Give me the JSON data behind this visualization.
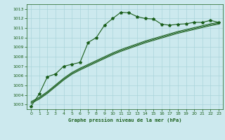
{
  "bg_color": "#cce9ee",
  "grid_color": "#aad4da",
  "line_color": "#1a5e1a",
  "title": "Graphe pression niveau de la mer (hPa)",
  "ylim": [
    1002.5,
    1013.5
  ],
  "xlim": [
    -0.5,
    23.5
  ],
  "yticks": [
    1003,
    1004,
    1005,
    1006,
    1007,
    1008,
    1009,
    1010,
    1011,
    1012,
    1013
  ],
  "xticks": [
    0,
    1,
    2,
    3,
    4,
    5,
    6,
    7,
    8,
    9,
    10,
    11,
    12,
    13,
    14,
    15,
    16,
    17,
    18,
    19,
    20,
    21,
    22,
    23
  ],
  "main_x": [
    0,
    1,
    2,
    3,
    4,
    5,
    6,
    7,
    8,
    9,
    10,
    11,
    12,
    13,
    14,
    15,
    16,
    17,
    18,
    19,
    20,
    21,
    22,
    23
  ],
  "main_y": [
    1002.8,
    1004.1,
    1005.9,
    1006.2,
    1007.0,
    1007.2,
    1007.4,
    1009.5,
    1010.0,
    1011.3,
    1012.0,
    1012.65,
    1012.6,
    1012.2,
    1012.0,
    1011.95,
    1011.4,
    1011.3,
    1011.4,
    1011.45,
    1011.6,
    1011.6,
    1011.8,
    1011.6
  ],
  "smooth1_y": [
    1003.1,
    1003.55,
    1004.15,
    1004.85,
    1005.55,
    1006.15,
    1006.6,
    1007.0,
    1007.4,
    1007.8,
    1008.2,
    1008.55,
    1008.85,
    1009.15,
    1009.45,
    1009.7,
    1009.95,
    1010.2,
    1010.45,
    1010.65,
    1010.85,
    1011.05,
    1011.25,
    1011.4
  ],
  "smooth2_y": [
    1003.2,
    1003.65,
    1004.25,
    1004.95,
    1005.65,
    1006.25,
    1006.7,
    1007.1,
    1007.5,
    1007.9,
    1008.3,
    1008.65,
    1008.95,
    1009.25,
    1009.55,
    1009.8,
    1010.05,
    1010.3,
    1010.55,
    1010.75,
    1010.95,
    1011.15,
    1011.35,
    1011.5
  ],
  "smooth3_y": [
    1003.3,
    1003.75,
    1004.35,
    1005.05,
    1005.75,
    1006.35,
    1006.8,
    1007.2,
    1007.6,
    1008.0,
    1008.4,
    1008.75,
    1009.05,
    1009.35,
    1009.65,
    1009.9,
    1010.15,
    1010.4,
    1010.65,
    1010.85,
    1011.05,
    1011.25,
    1011.45,
    1011.6
  ]
}
